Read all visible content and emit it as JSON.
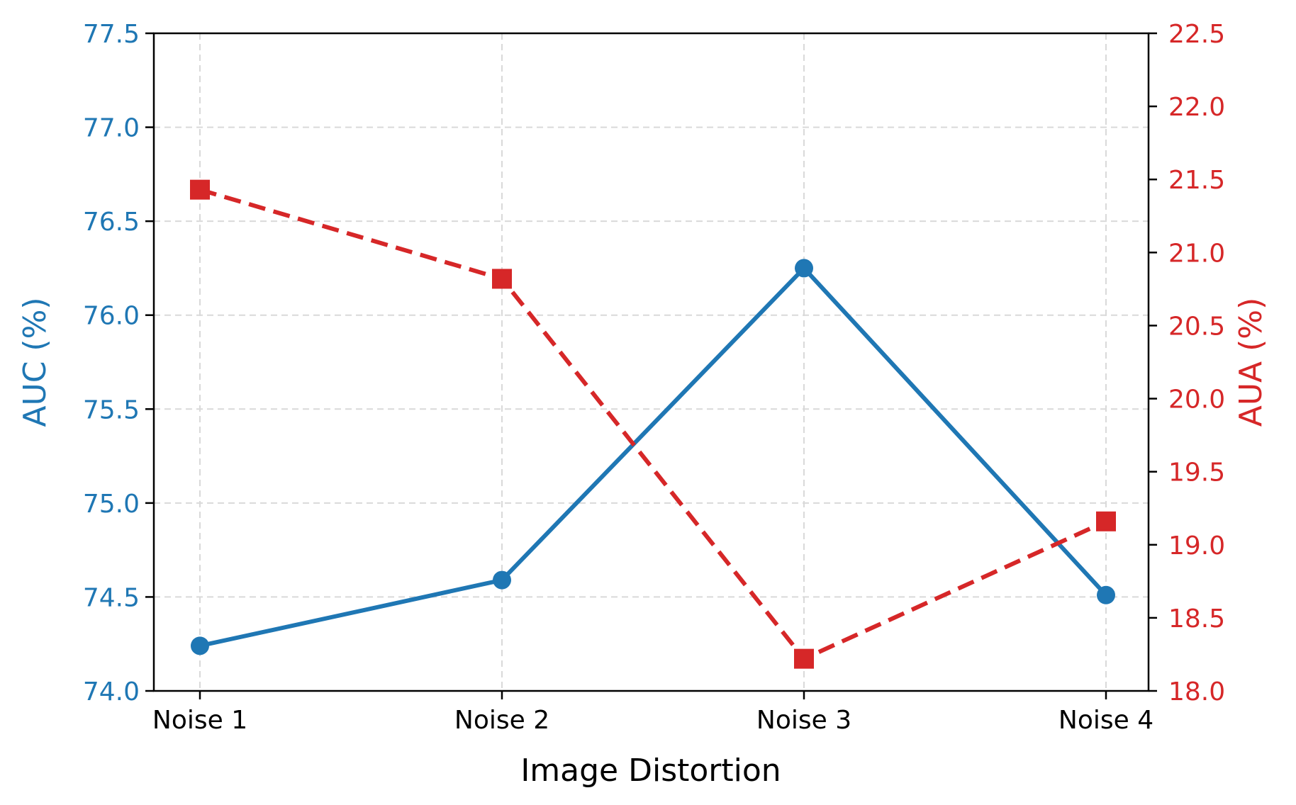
{
  "chart_data": {
    "type": "line",
    "categories": [
      "Noise 1",
      "Noise 2",
      "Noise 3",
      "Noise 4"
    ],
    "xlabel": "Image Distortion",
    "left_axis": {
      "label": "AUC (%)",
      "ylim": [
        74.0,
        77.5
      ],
      "ticks": [
        "74.0",
        "74.5",
        "75.0",
        "75.5",
        "76.0",
        "76.5",
        "77.0",
        "77.5"
      ],
      "color": "#1f77b4"
    },
    "right_axis": {
      "label": "AUA (%)",
      "ylim": [
        18.0,
        22.5
      ],
      "ticks": [
        "18.0",
        "18.5",
        "19.0",
        "19.5",
        "20.0",
        "20.5",
        "21.0",
        "21.5",
        "22.0",
        "22.5"
      ],
      "color": "#d62728"
    },
    "series": [
      {
        "axis": "left",
        "values": [
          74.24,
          74.59,
          76.25,
          74.51
        ],
        "color": "#1f77b4",
        "line_style": "solid",
        "marker": "circle"
      },
      {
        "axis": "right",
        "values": [
          21.43,
          20.82,
          18.22,
          19.16
        ],
        "color": "#d62728",
        "line_style": "dashed",
        "marker": "square"
      }
    ],
    "grid": true,
    "legend": "none"
  }
}
